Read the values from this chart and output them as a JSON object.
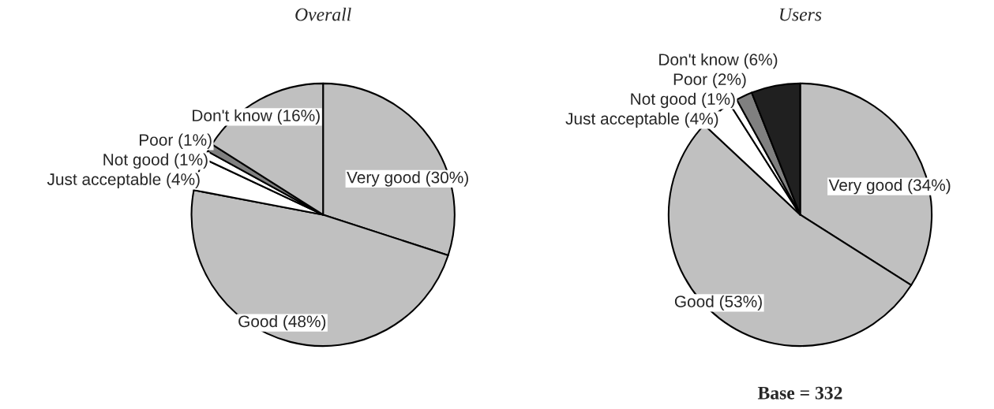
{
  "chart_data": [
    {
      "type": "pie",
      "title": "Overall",
      "categories": [
        "Very good (30%)",
        "Good (48%)",
        "Just acceptable (4%)",
        "Not good (1%)",
        "Poor (1%)",
        "Don't know (16%)"
      ],
      "values": [
        30,
        48,
        4,
        1,
        1,
        16
      ],
      "colors": [
        "#c0c0c0",
        "#c0c0c0",
        "#ffffff",
        "#ffffff",
        "#808080",
        "#c0c0c0"
      ]
    },
    {
      "type": "pie",
      "title": "Users",
      "categories": [
        "Very good (34%)",
        "Good (53%)",
        "Just acceptable (4%)",
        "Not good (1%)",
        "Poor (2%)",
        "Don't know (6%)"
      ],
      "values": [
        34,
        53,
        4,
        1,
        2,
        6
      ],
      "colors": [
        "#c0c0c0",
        "#c0c0c0",
        "#ffffff",
        "#ffffff",
        "#808080",
        "#202020"
      ],
      "annotations": [
        "Base = 332"
      ]
    }
  ]
}
